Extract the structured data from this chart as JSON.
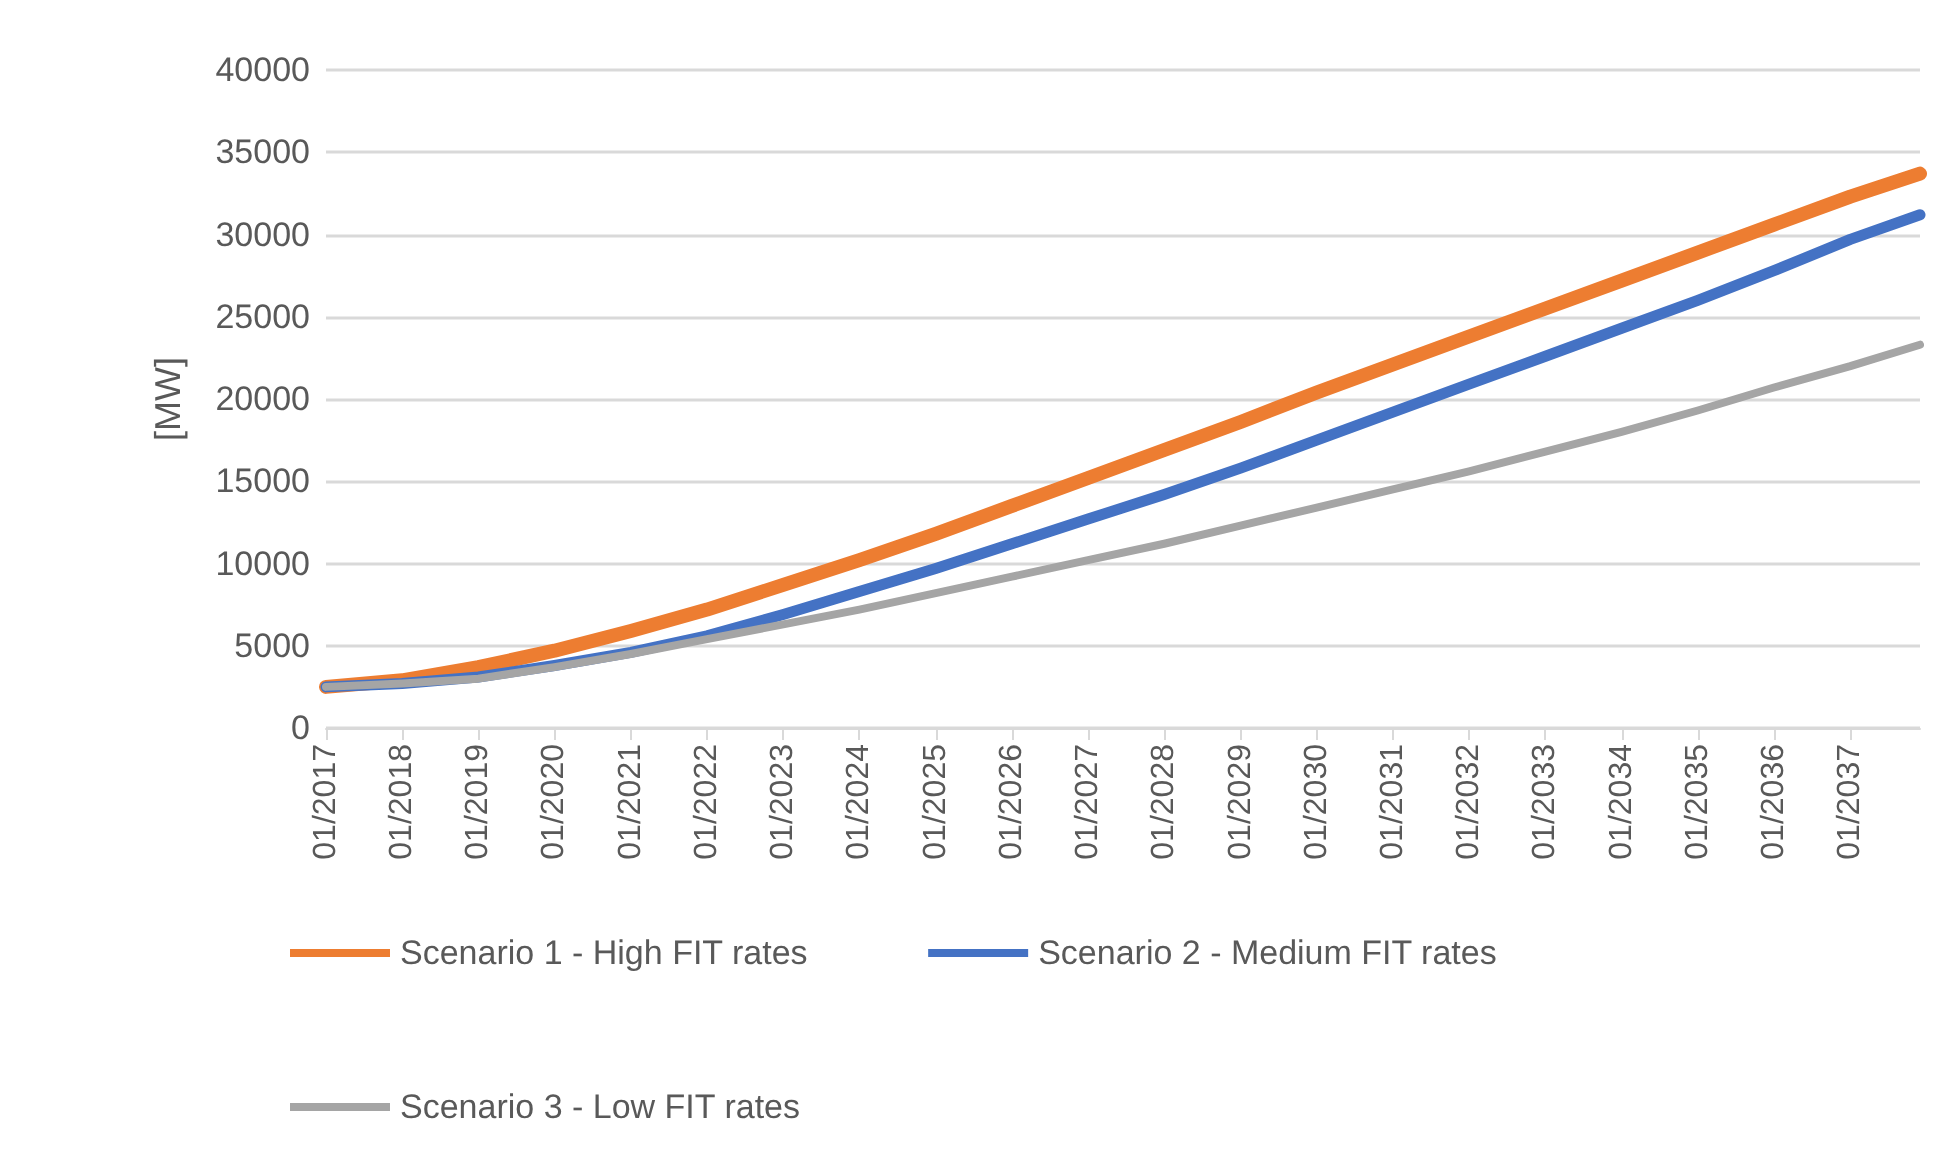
{
  "chart_data": {
    "type": "line",
    "ylabel": "[MW]",
    "x": [
      "2017-01",
      "2018-01",
      "2019-01",
      "2020-01",
      "2021-01",
      "2022-01",
      "2023-01",
      "2024-01",
      "2025-01",
      "2026-01",
      "2027-01",
      "2028-01",
      "2029-01",
      "2030-01",
      "2031-01",
      "2032-01",
      "2033-01",
      "2034-01",
      "2035-01",
      "2036-01",
      "2037-01",
      "2037-12"
    ],
    "series": [
      {
        "name": "Scenario 1 - High FIT rates",
        "color": "#ed7d31",
        "values": [
          2500,
          2900,
          3700,
          4700,
          5900,
          7200,
          8700,
          10200,
          11800,
          13500,
          15200,
          16900,
          18600,
          20400,
          22100,
          23800,
          25500,
          27200,
          28900,
          30600,
          32300,
          33700
        ]
      },
      {
        "name": "Scenario 2 - Medium FIT rates",
        "color": "#4472c4",
        "values": [
          2500,
          2700,
          3100,
          3800,
          4600,
          5600,
          6900,
          8300,
          9700,
          11200,
          12700,
          14200,
          15800,
          17500,
          19200,
          20900,
          22600,
          24300,
          26000,
          27800,
          29700,
          31200
        ]
      },
      {
        "name": "Scenario 3 - Low FIT rates",
        "color": "#a5a5a5",
        "values": [
          2500,
          2700,
          3000,
          3700,
          4500,
          5400,
          6300,
          7200,
          8200,
          9200,
          10200,
          11200,
          12300,
          13400,
          14500,
          15600,
          16800,
          18000,
          19300,
          20700,
          22000,
          23300
        ]
      }
    ],
    "xlim": [
      "2017-01",
      "2037-12"
    ],
    "xticks": [
      {
        "value": "2017-01",
        "label": "01/2017"
      },
      {
        "value": "2018-01",
        "label": "01/2018"
      },
      {
        "value": "2019-01",
        "label": "01/2019"
      },
      {
        "value": "2020-01",
        "label": "01/2020"
      },
      {
        "value": "2021-01",
        "label": "01/2021"
      },
      {
        "value": "2022-01",
        "label": "01/2022"
      },
      {
        "value": "2023-01",
        "label": "01/2023"
      },
      {
        "value": "2024-01",
        "label": "01/2024"
      },
      {
        "value": "2025-01",
        "label": "01/2025"
      },
      {
        "value": "2026-01",
        "label": "01/2026"
      },
      {
        "value": "2027-01",
        "label": "01/2027"
      },
      {
        "value": "2028-01",
        "label": "01/2028"
      },
      {
        "value": "2029-01",
        "label": "01/2029"
      },
      {
        "value": "2030-01",
        "label": "01/2030"
      },
      {
        "value": "2031-01",
        "label": "01/2031"
      },
      {
        "value": "2032-01",
        "label": "01/2032"
      },
      {
        "value": "2033-01",
        "label": "01/2033"
      },
      {
        "value": "2034-01",
        "label": "01/2034"
      },
      {
        "value": "2035-01",
        "label": "01/2035"
      },
      {
        "value": "2036-01",
        "label": "01/2036"
      },
      {
        "value": "2037-01",
        "label": "01/2037"
      }
    ],
    "ylim": [
      0,
      40000
    ],
    "yticks": [
      0,
      5000,
      10000,
      15000,
      20000,
      25000,
      30000,
      35000,
      40000
    ],
    "grid": "y",
    "legend": "bottom",
    "marker": "none",
    "line_style": "solid"
  }
}
